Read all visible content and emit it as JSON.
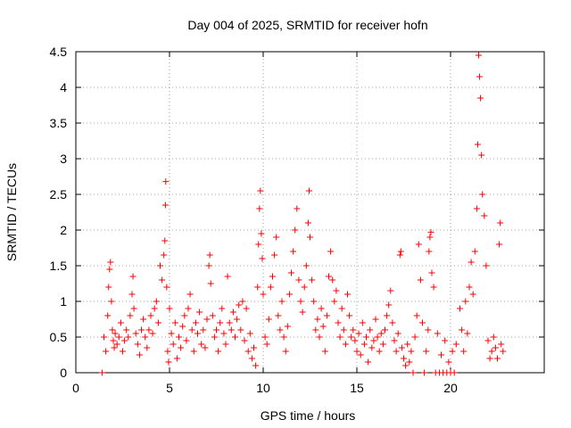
{
  "chart_data": {
    "type": "scatter",
    "title": "Day 004 of 2025, SRMTID for receiver hofn",
    "xlabel": "GPS time / hours",
    "ylabel": "SRMTID / TECUs",
    "xlim": [
      0,
      25
    ],
    "ylim": [
      0,
      4.5
    ],
    "xticks": [
      {
        "value": 0,
        "label": "0"
      },
      {
        "value": 5,
        "label": "5"
      },
      {
        "value": 10,
        "label": "10"
      },
      {
        "value": 15,
        "label": "15"
      },
      {
        "value": 20,
        "label": "20"
      }
    ],
    "yticks": [
      {
        "value": 0,
        "label": "0"
      },
      {
        "value": 0.5,
        "label": "0.5"
      },
      {
        "value": 1,
        "label": "1"
      },
      {
        "value": 1.5,
        "label": "1.5"
      },
      {
        "value": 2,
        "label": "2"
      },
      {
        "value": 2.5,
        "label": "2.5"
      },
      {
        "value": 3,
        "label": "3"
      },
      {
        "value": 3.5,
        "label": "3.5"
      },
      {
        "value": 4,
        "label": "4"
      },
      {
        "value": 4.5,
        "label": "4.5"
      }
    ],
    "grid": true,
    "marker": "+",
    "marker_color": "#ff0000",
    "series": [
      {
        "name": "SRMTID",
        "points": [
          [
            1.4,
            0.0
          ],
          [
            1.5,
            0.5
          ],
          [
            1.6,
            0.3
          ],
          [
            1.7,
            0.8
          ],
          [
            1.75,
            1.2
          ],
          [
            1.8,
            1.45
          ],
          [
            1.85,
            1.55
          ],
          [
            1.9,
            1.0
          ],
          [
            1.95,
            0.6
          ],
          [
            2.0,
            0.45
          ],
          [
            2.05,
            0.35
          ],
          [
            2.1,
            0.55
          ],
          [
            2.2,
            0.4
          ],
          [
            2.3,
            0.5
          ],
          [
            2.4,
            0.7
          ],
          [
            2.5,
            0.3
          ],
          [
            2.6,
            0.45
          ],
          [
            2.7,
            0.6
          ],
          [
            2.8,
            0.5
          ],
          [
            2.9,
            0.8
          ],
          [
            3.0,
            1.1
          ],
          [
            3.05,
            1.35
          ],
          [
            3.1,
            0.9
          ],
          [
            3.2,
            0.55
          ],
          [
            3.3,
            0.4
          ],
          [
            3.4,
            0.25
          ],
          [
            3.5,
            0.6
          ],
          [
            3.6,
            0.75
          ],
          [
            3.7,
            0.5
          ],
          [
            3.8,
            0.35
          ],
          [
            3.9,
            0.6
          ],
          [
            4.0,
            0.8
          ],
          [
            4.1,
            0.55
          ],
          [
            4.2,
            0.9
          ],
          [
            4.3,
            1.0
          ],
          [
            4.4,
            0.7
          ],
          [
            4.5,
            1.5
          ],
          [
            4.6,
            1.3
          ],
          [
            4.7,
            1.65
          ],
          [
            4.75,
            1.85
          ],
          [
            4.78,
            2.35
          ],
          [
            4.8,
            2.68
          ],
          [
            4.85,
            1.2
          ],
          [
            4.9,
            0.3
          ],
          [
            4.95,
            0.15
          ],
          [
            5.0,
            0.9
          ],
          [
            5.1,
            0.55
          ],
          [
            5.2,
            0.4
          ],
          [
            5.3,
            0.7
          ],
          [
            5.4,
            0.2
          ],
          [
            5.5,
            0.5
          ],
          [
            5.6,
            0.35
          ],
          [
            5.7,
            0.65
          ],
          [
            5.8,
            0.8
          ],
          [
            5.9,
            0.45
          ],
          [
            6.0,
            0.9
          ],
          [
            6.1,
            1.1
          ],
          [
            6.2,
            0.6
          ],
          [
            6.3,
            0.3
          ],
          [
            6.4,
            0.7
          ],
          [
            6.5,
            0.55
          ],
          [
            6.6,
            0.85
          ],
          [
            6.7,
            0.4
          ],
          [
            6.8,
            0.6
          ],
          [
            6.9,
            0.35
          ],
          [
            7.0,
            0.75
          ],
          [
            7.1,
            1.5
          ],
          [
            7.15,
            1.65
          ],
          [
            7.2,
            1.25
          ],
          [
            7.3,
            0.8
          ],
          [
            7.4,
            0.5
          ],
          [
            7.5,
            0.6
          ],
          [
            7.6,
            0.3
          ],
          [
            7.7,
            0.7
          ],
          [
            7.8,
            0.9
          ],
          [
            7.9,
            0.55
          ],
          [
            8.0,
            0.4
          ],
          [
            8.1,
            1.35
          ],
          [
            8.2,
            0.7
          ],
          [
            8.3,
            0.6
          ],
          [
            8.4,
            0.85
          ],
          [
            8.5,
            0.5
          ],
          [
            8.6,
            0.75
          ],
          [
            8.7,
            0.95
          ],
          [
            8.8,
            0.6
          ],
          [
            8.9,
            1.0
          ],
          [
            9.0,
            0.45
          ],
          [
            9.1,
            0.9
          ],
          [
            9.2,
            0.3
          ],
          [
            9.3,
            0.55
          ],
          [
            9.4,
            0.2
          ],
          [
            9.5,
            0.35
          ],
          [
            9.6,
            0.1
          ],
          [
            9.7,
            1.2
          ],
          [
            9.75,
            1.8
          ],
          [
            9.8,
            2.3
          ],
          [
            9.85,
            2.55
          ],
          [
            9.9,
            1.95
          ],
          [
            9.95,
            1.6
          ],
          [
            10.0,
            1.1
          ],
          [
            10.1,
            0.5
          ],
          [
            10.2,
            0.4
          ],
          [
            10.3,
            0.75
          ],
          [
            10.4,
            1.2
          ],
          [
            10.5,
            1.35
          ],
          [
            10.6,
            1.65
          ],
          [
            10.7,
            1.9
          ],
          [
            10.8,
            0.8
          ],
          [
            10.9,
            0.6
          ],
          [
            11.0,
            1.0
          ],
          [
            11.1,
            0.5
          ],
          [
            11.2,
            0.3
          ],
          [
            11.3,
            0.65
          ],
          [
            11.4,
            1.1
          ],
          [
            11.5,
            1.4
          ],
          [
            11.6,
            1.7
          ],
          [
            11.7,
            2.0
          ],
          [
            11.8,
            2.3
          ],
          [
            11.9,
            1.3
          ],
          [
            12.0,
            1.0
          ],
          [
            12.1,
            0.85
          ],
          [
            12.2,
            1.2
          ],
          [
            12.3,
            1.5
          ],
          [
            12.4,
            2.1
          ],
          [
            12.45,
            2.55
          ],
          [
            12.5,
            1.9
          ],
          [
            12.6,
            1.3
          ],
          [
            12.7,
            1.0
          ],
          [
            12.8,
            0.6
          ],
          [
            12.9,
            0.75
          ],
          [
            13.0,
            0.5
          ],
          [
            13.1,
            0.9
          ],
          [
            13.2,
            0.65
          ],
          [
            13.3,
            0.3
          ],
          [
            13.4,
            0.8
          ],
          [
            13.5,
            1.35
          ],
          [
            13.6,
            1.7
          ],
          [
            13.7,
            1.3
          ],
          [
            13.8,
            1.0
          ],
          [
            13.9,
            1.15
          ],
          [
            14.0,
            0.7
          ],
          [
            14.1,
            0.5
          ],
          [
            14.2,
            0.9
          ],
          [
            14.3,
            0.6
          ],
          [
            14.4,
            0.4
          ],
          [
            14.5,
            1.1
          ],
          [
            14.6,
            0.8
          ],
          [
            14.7,
            0.5
          ],
          [
            14.8,
            0.6
          ],
          [
            14.9,
            0.45
          ],
          [
            15.0,
            0.3
          ],
          [
            15.1,
            0.55
          ],
          [
            15.2,
            0.25
          ],
          [
            15.3,
            0.7
          ],
          [
            15.4,
            0.4
          ],
          [
            15.5,
            0.5
          ],
          [
            15.6,
            0.15
          ],
          [
            15.7,
            0.6
          ],
          [
            15.8,
            0.35
          ],
          [
            15.9,
            0.45
          ],
          [
            16.0,
            0.75
          ],
          [
            16.1,
            0.5
          ],
          [
            16.2,
            0.3
          ],
          [
            16.3,
            0.55
          ],
          [
            16.4,
            0.4
          ],
          [
            16.5,
            0.6
          ],
          [
            16.6,
            0.8
          ],
          [
            16.7,
            0.95
          ],
          [
            16.8,
            1.15
          ],
          [
            16.9,
            0.7
          ],
          [
            17.0,
            0.45
          ],
          [
            17.1,
            0.3
          ],
          [
            17.2,
            0.55
          ],
          [
            17.3,
            1.65
          ],
          [
            17.35,
            1.7
          ],
          [
            17.4,
            0.35
          ],
          [
            17.5,
            0.2
          ],
          [
            17.6,
            0.1
          ],
          [
            17.7,
            0.4
          ],
          [
            17.8,
            0.15
          ],
          [
            17.9,
            0.3
          ],
          [
            18.0,
            0.0
          ],
          [
            18.1,
            0.5
          ],
          [
            18.2,
            0.8
          ],
          [
            18.3,
            1.8
          ],
          [
            18.4,
            1.3
          ],
          [
            18.5,
            0.7
          ],
          [
            18.6,
            0.0
          ],
          [
            18.7,
            0.3
          ],
          [
            18.8,
            0.6
          ],
          [
            18.85,
            1.7
          ],
          [
            18.9,
            1.9
          ],
          [
            18.95,
            1.97
          ],
          [
            19.0,
            1.4
          ],
          [
            19.1,
            1.2
          ],
          [
            19.2,
            0.0
          ],
          [
            19.3,
            0.55
          ],
          [
            19.4,
            0.0
          ],
          [
            19.5,
            0.25
          ],
          [
            19.6,
            0.0
          ],
          [
            19.7,
            0.45
          ],
          [
            19.8,
            0.0
          ],
          [
            19.9,
            0.15
          ],
          [
            20.0,
            0.0
          ],
          [
            20.1,
            0.3
          ],
          [
            20.2,
            0.0
          ],
          [
            20.3,
            0.4
          ],
          [
            20.5,
            0.9
          ],
          [
            20.6,
            0.6
          ],
          [
            20.7,
            0.3
          ],
          [
            20.8,
            1.0
          ],
          [
            20.9,
            0.55
          ],
          [
            21.0,
            1.2
          ],
          [
            21.1,
            1.55
          ],
          [
            21.2,
            1.1
          ],
          [
            21.3,
            1.7
          ],
          [
            21.4,
            2.3
          ],
          [
            21.45,
            3.2
          ],
          [
            21.5,
            4.45
          ],
          [
            21.55,
            4.15
          ],
          [
            21.6,
            3.85
          ],
          [
            21.65,
            3.05
          ],
          [
            21.7,
            2.5
          ],
          [
            21.8,
            2.2
          ],
          [
            21.9,
            1.5
          ],
          [
            22.0,
            0.45
          ],
          [
            22.1,
            0.2
          ],
          [
            22.2,
            0.3
          ],
          [
            22.3,
            0.5
          ],
          [
            22.4,
            0.35
          ],
          [
            22.5,
            0.2
          ],
          [
            22.6,
            1.8
          ],
          [
            22.65,
            2.1
          ],
          [
            22.7,
            0.4
          ],
          [
            22.8,
            0.3
          ]
        ]
      }
    ]
  }
}
